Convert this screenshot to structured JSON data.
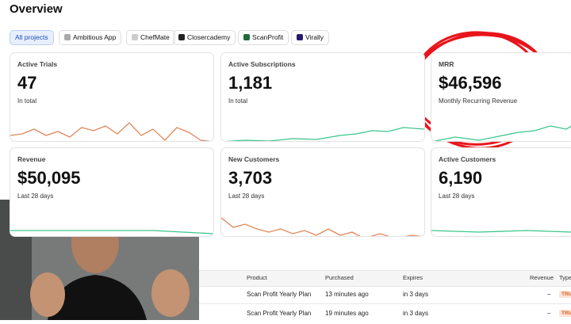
{
  "header": {
    "title": "Overview"
  },
  "tabs": [
    "All projects",
    "Ambitious App",
    "ChefMate",
    "Closercademy",
    "ScanProfit",
    "Virally"
  ],
  "cards": [
    {
      "label": "Active Trials",
      "value": "47",
      "note": "In total"
    },
    {
      "label": "Active Subscriptions",
      "value": "1,181",
      "note": "In total"
    },
    {
      "label": "MRR",
      "value": "$46,596",
      "note": "Monthly Recurring Revenue"
    },
    {
      "label": "Revenue",
      "value": "$50,095",
      "note": "Last 28 days"
    },
    {
      "label": "New Customers",
      "value": "3,703",
      "note": "Last 28 days"
    },
    {
      "label": "Active Customers",
      "value": "6,190",
      "note": "Last 28 days"
    }
  ],
  "table": {
    "columns": [
      "Product",
      "Purchased",
      "Expires",
      "Revenue",
      "Type"
    ],
    "rows": [
      [
        "Scan Profit Yearly Plan",
        "13 minutes ago",
        "in 3 days",
        "–",
        "TRIAL"
      ],
      [
        "Scan Profit Yearly Plan",
        "19 minutes ago",
        "in 3 days",
        "–",
        "TRIAL"
      ]
    ]
  }
}
